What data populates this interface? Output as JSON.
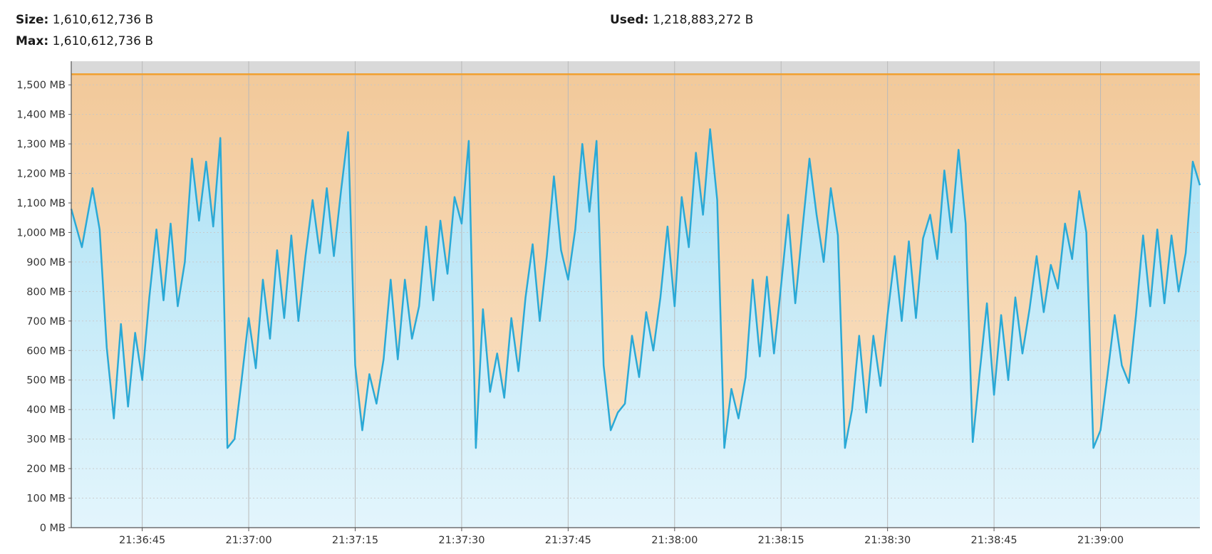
{
  "stats": {
    "size_label": "Size:",
    "size_value": "1,610,612,736 B",
    "max_label": "Max:",
    "max_value": "1,610,612,736 B",
    "used_label": "Used:",
    "used_value": "1,218,883,272 B"
  },
  "chart_data": {
    "type": "area",
    "title": "",
    "xlabel": "",
    "ylabel": "",
    "ylim": [
      0,
      1580
    ],
    "y_unit": "MB",
    "y_ticks": [
      0,
      100,
      200,
      300,
      400,
      500,
      600,
      700,
      800,
      900,
      1000,
      1100,
      1200,
      1300,
      1400,
      1500
    ],
    "y_tick_labels": [
      "0 MB",
      "100 MB",
      "200 MB",
      "300 MB",
      "400 MB",
      "500 MB",
      "600 MB",
      "700 MB",
      "800 MB",
      "900 MB",
      "1,000 MB",
      "1,100 MB",
      "1,200 MB",
      "1,300 MB",
      "1,400 MB",
      "1,500 MB"
    ],
    "x_range_seconds": [
      "21:36:35",
      "21:39:14"
    ],
    "x_ticks": [
      "21:36:45",
      "21:37:00",
      "21:37:15",
      "21:37:30",
      "21:37:45",
      "21:38:00",
      "21:38:15",
      "21:38:30",
      "21:38:45",
      "21:39:00"
    ],
    "grid": true,
    "colors": {
      "used_line": "#2aa9d6",
      "used_fill_top": "#aee2f5",
      "used_fill_bottom": "#e3f5fc",
      "size_line": "#f0a030",
      "size_fill_top": "#f2c99a",
      "size_fill_bottom": "#fbe6cc",
      "plot_top_band": "#d9d9d9",
      "grid": "#c8c8c8"
    },
    "series": [
      {
        "name": "Size",
        "values_constant_mb": 1536
      },
      {
        "name": "Used",
        "x_seconds": [
          0,
          1.5,
          3,
          4,
          5,
          6,
          7,
          8,
          9,
          10,
          11,
          12,
          13,
          14,
          15,
          16,
          17,
          18,
          19,
          20,
          21,
          22,
          23,
          24,
          25,
          26,
          27,
          28,
          29,
          30,
          31,
          32,
          33,
          34,
          35,
          36,
          37,
          38,
          39,
          40,
          41,
          42,
          43,
          44,
          45,
          46,
          47,
          48,
          49,
          50,
          51,
          52,
          53,
          54,
          55,
          56,
          57,
          58,
          59,
          60,
          61,
          62,
          63,
          64,
          65,
          66,
          67,
          68,
          69,
          70,
          71,
          72,
          73,
          74,
          75,
          76,
          77,
          78,
          79,
          80,
          81,
          82,
          83,
          84,
          85,
          86,
          87,
          88,
          89,
          90,
          91,
          92,
          93,
          94,
          95,
          96,
          97,
          98,
          99,
          100,
          101,
          102,
          103,
          104,
          105,
          106,
          107,
          108,
          109,
          110,
          111,
          112,
          113,
          114,
          115,
          116,
          117,
          118,
          119,
          120,
          121,
          122,
          123,
          124,
          125,
          126,
          127,
          128,
          129,
          130,
          131,
          132,
          133,
          134,
          135,
          136,
          137,
          138,
          139,
          140,
          141,
          142,
          143,
          144,
          145,
          146,
          147,
          148,
          149,
          150,
          151,
          152,
          153,
          154,
          155,
          156,
          157,
          158,
          159
        ],
        "values_mb": [
          1080,
          950,
          1150,
          1010,
          610,
          370,
          690,
          410,
          660,
          500,
          780,
          1010,
          770,
          1030,
          750,
          900,
          1250,
          1040,
          1240,
          1020,
          1320,
          270,
          300,
          500,
          710,
          540,
          840,
          640,
          940,
          710,
          990,
          700,
          920,
          1110,
          930,
          1150,
          920,
          1140,
          1340,
          550,
          330,
          520,
          420,
          570,
          840,
          570,
          840,
          640,
          750,
          1020,
          770,
          1040,
          860,
          1120,
          1030,
          1310,
          270,
          740,
          460,
          590,
          440,
          710,
          530,
          780,
          960,
          700,
          920,
          1190,
          940,
          840,
          1010,
          1300,
          1070,
          1310,
          550,
          330,
          390,
          420,
          650,
          510,
          730,
          600,
          780,
          1020,
          750,
          1120,
          950,
          1270,
          1060,
          1350,
          1110,
          270,
          470,
          370,
          510,
          840,
          580,
          850,
          590,
          820,
          1060,
          760,
          1010,
          1250,
          1060,
          900,
          1150,
          990,
          270,
          400,
          650,
          390,
          650,
          480,
          720,
          920,
          700,
          970,
          710,
          980,
          1060,
          910,
          1210,
          1000,
          1280,
          1030,
          290,
          530,
          760,
          450,
          720,
          500,
          780,
          590,
          740,
          920,
          730,
          890,
          810,
          1030,
          910,
          1140,
          1000,
          270,
          330,
          520,
          720,
          550,
          490,
          720,
          990,
          750,
          1010,
          760,
          990,
          800,
          930,
          1240,
          1160
        ]
      }
    ]
  }
}
